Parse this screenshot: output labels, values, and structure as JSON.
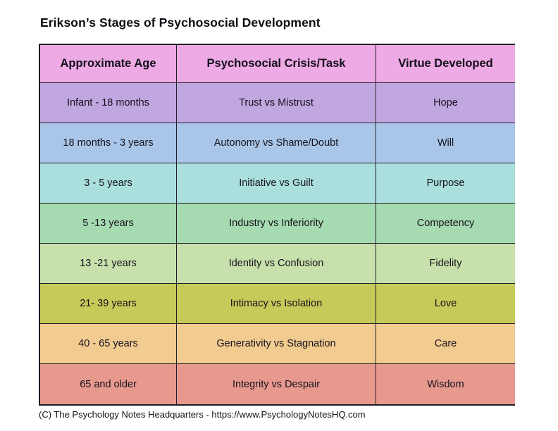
{
  "title": "Erikson’s Stages of Psychosocial Development",
  "chart_data": {
    "type": "table",
    "title": "Erikson’s Stages of Psychosocial Development",
    "columns": [
      "Approximate Age",
      "Psychosocial Crisis/Task",
      "Virtue Developed"
    ],
    "header_color": "#eeaae4",
    "border_color": "#211e29",
    "rows": [
      {
        "age": "Infant - 18 months",
        "crisis": "Trust vs Mistrust",
        "virtue": "Hope",
        "row_color": "#c1a7e0"
      },
      {
        "age": "18 months - 3 years",
        "crisis": "Autonomy vs Shame/Doubt",
        "virtue": "Will",
        "row_color": "#a9c6e8"
      },
      {
        "age": "3 - 5 years",
        "crisis": "Initiative vs Guilt",
        "virtue": "Purpose",
        "row_color": "#aadfdd"
      },
      {
        "age": "5 -13 years",
        "crisis": "Industry vs Inferiority",
        "virtue": "Competency",
        "row_color": "#a6dab0"
      },
      {
        "age": "13 -21 years",
        "crisis": "Identity vs Confusion",
        "virtue": "Fidelity",
        "row_color": "#c8e0ab"
      },
      {
        "age": "21- 39 years",
        "crisis": "Intimacy vs Isolation",
        "virtue": "Love",
        "row_color": "#c5ca58"
      },
      {
        "age": "40 - 65 years",
        "crisis": "Generativity vs Stagnation",
        "virtue": "Care",
        "row_color": "#f2cb90"
      },
      {
        "age": "65 and older",
        "crisis": "Integrity vs Despair",
        "virtue": "Wisdom",
        "row_color": "#e8998e"
      }
    ]
  },
  "footer": {
    "credit": "(C) The Psychology Notes Headquarters - https://www.PsychologyNotesHQ.com"
  }
}
